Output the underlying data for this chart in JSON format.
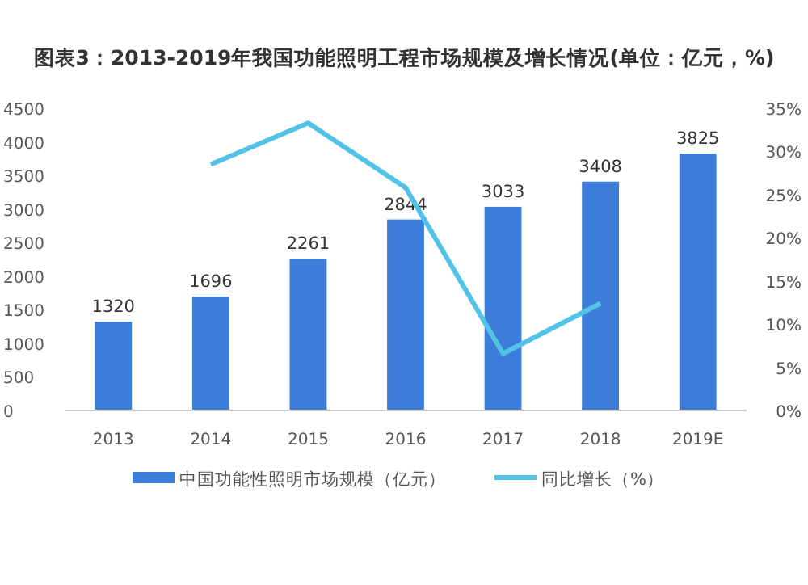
{
  "chart_data": {
    "type": "bar",
    "title": "图表3：2013-2019年我国功能照明工程市场规模及增长情况(单位：亿元，%)",
    "categories": [
      "2013",
      "2014",
      "2015",
      "2016",
      "2017",
      "2018",
      "2019E"
    ],
    "series": [
      {
        "name": "中国功能性照明市场规模（亿元）",
        "color": "#3b7dd8",
        "values": [
          1320,
          1696,
          2261,
          2844,
          3033,
          3408,
          3825
        ],
        "value_labels": [
          "1320",
          "1696",
          "2261",
          "2844",
          "3033",
          "3408",
          "3825"
        ]
      },
      {
        "name": "同比增长（%）",
        "type": "line",
        "axis": "y2",
        "color": "#52c3e6",
        "values": [
          null,
          28.5,
          33.3,
          25.8,
          6.6,
          12.4,
          null
        ]
      }
    ],
    "ylim": [
      0,
      4500
    ],
    "yticks": [
      0,
      500,
      1000,
      1500,
      2000,
      2500,
      3000,
      3500,
      4000,
      4500
    ],
    "y2lim": [
      0,
      35
    ],
    "y2ticks": [
      {
        "value": 0,
        "label": "0%"
      },
      {
        "value": 5,
        "label": "5%"
      },
      {
        "value": 10,
        "label": "10%"
      },
      {
        "value": 15,
        "label": "15%"
      },
      {
        "value": 20,
        "label": "20%"
      },
      {
        "value": 25,
        "label": "25%"
      },
      {
        "value": 30,
        "label": "30%"
      },
      {
        "value": 35,
        "label": "35%"
      }
    ],
    "grid": false,
    "legend": "bottom",
    "marker": "none",
    "line_style": "solid"
  }
}
